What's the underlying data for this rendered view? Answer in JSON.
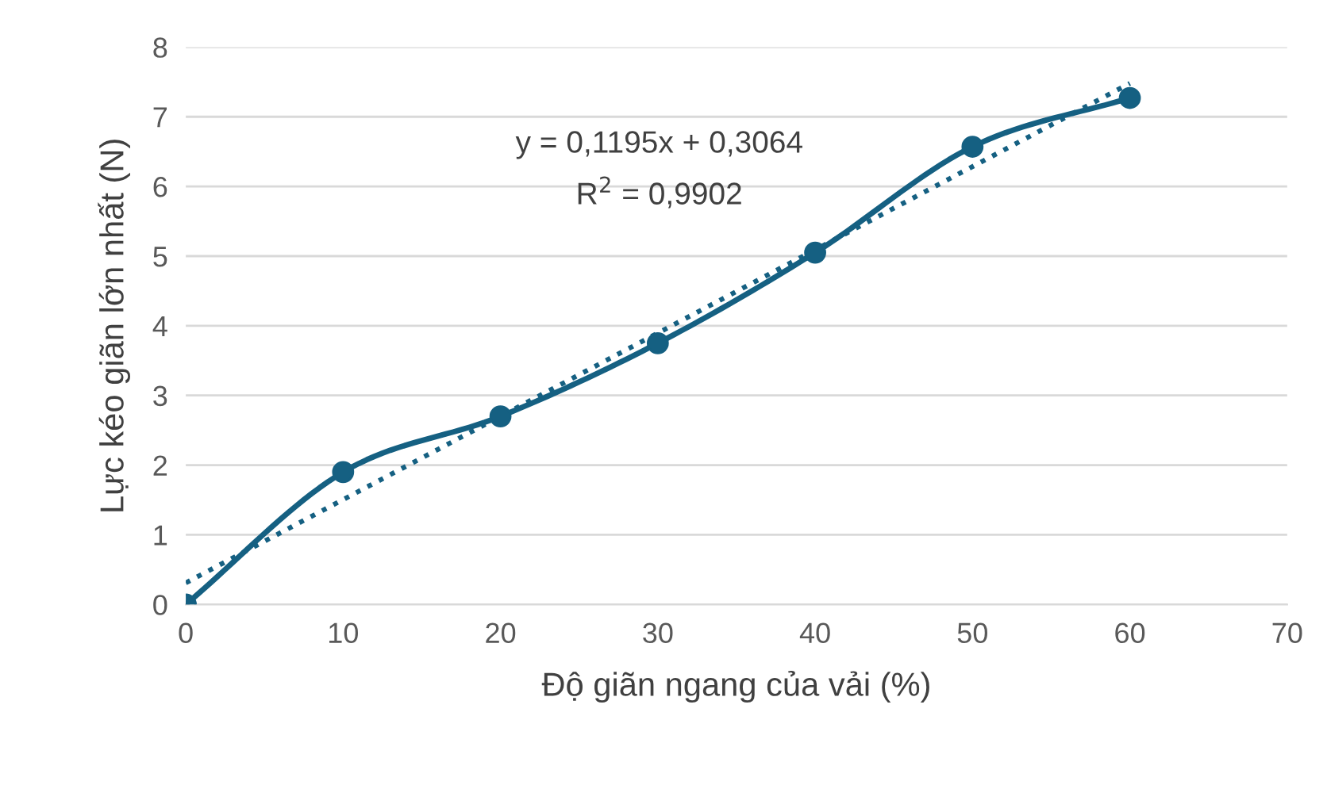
{
  "chart_data": {
    "type": "line",
    "xlabel": "Độ giãn ngang của vải (%)",
    "ylabel": "Lực kéo giãn lớn nhất (N)",
    "xlim": [
      0,
      70
    ],
    "xticks": [
      0,
      10,
      20,
      30,
      40,
      50,
      60,
      70
    ],
    "ylim": [
      0,
      8
    ],
    "yticks": [
      0,
      1,
      2,
      3,
      4,
      5,
      6,
      7,
      8
    ],
    "grid": "y",
    "legend": false,
    "series": [
      {
        "color": "#156082",
        "x": [
          0,
          10,
          20,
          30,
          40,
          50,
          60
        ],
        "values": [
          0,
          1.9,
          2.7,
          3.75,
          5.05,
          6.57,
          7.27
        ],
        "marker": "circle",
        "line_style": "solid"
      },
      {
        "color": "#156082",
        "x": [
          0,
          60
        ],
        "values": [
          0.31,
          7.48
        ],
        "marker": "none",
        "line_style": "dotted"
      }
    ],
    "annotations": [
      "y = 0,1195x + 0,3064",
      "R$^{2}$ = 0,9902"
    ]
  }
}
